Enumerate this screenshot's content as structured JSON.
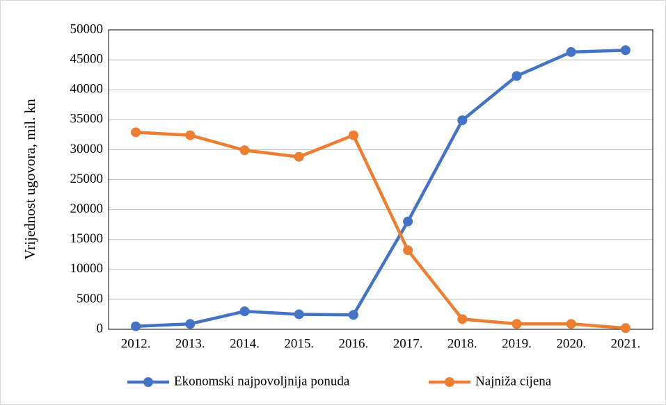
{
  "chart_data": {
    "type": "line",
    "y_label": "Vrijednost ugovora, mil. kn",
    "categories": [
      "2012.",
      "2013.",
      "2014.",
      "2015.",
      "2016.",
      "2017.",
      "2018.",
      "2019.",
      "2020.",
      "2021."
    ],
    "series": [
      {
        "name": "Ekonomski najpovoljnija ponuda",
        "color": "#4472c4",
        "values": [
          500,
          900,
          3000,
          2500,
          2400,
          18000,
          34900,
          42300,
          46300,
          46600
        ]
      },
      {
        "name": "Najniža cijena",
        "color": "#ed7d31",
        "values": [
          32900,
          32400,
          29900,
          28800,
          32400,
          13200,
          1700,
          900,
          900,
          200
        ]
      }
    ],
    "ylim": [
      0,
      50000
    ],
    "yticks": [
      0,
      5000,
      10000,
      15000,
      20000,
      25000,
      30000,
      35000,
      40000,
      45000,
      50000
    ],
    "grid": true,
    "legend": "bottom"
  }
}
